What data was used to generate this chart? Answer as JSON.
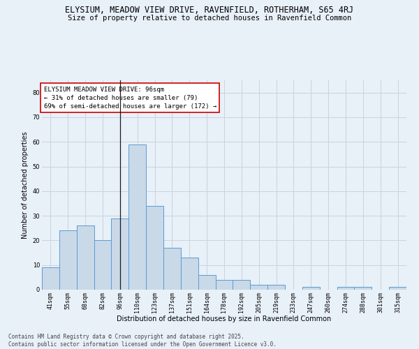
{
  "title1": "ELYSIUM, MEADOW VIEW DRIVE, RAVENFIELD, ROTHERHAM, S65 4RJ",
  "title2": "Size of property relative to detached houses in Ravenfield Common",
  "xlabel": "Distribution of detached houses by size in Ravenfield Common",
  "ylabel": "Number of detached properties",
  "categories": [
    "41sqm",
    "55sqm",
    "68sqm",
    "82sqm",
    "96sqm",
    "110sqm",
    "123sqm",
    "137sqm",
    "151sqm",
    "164sqm",
    "178sqm",
    "192sqm",
    "205sqm",
    "219sqm",
    "233sqm",
    "247sqm",
    "260sqm",
    "274sqm",
    "288sqm",
    "301sqm",
    "315sqm"
  ],
  "values": [
    9,
    24,
    26,
    20,
    29,
    59,
    34,
    17,
    13,
    6,
    4,
    4,
    2,
    2,
    0,
    1,
    0,
    1,
    1,
    0,
    1
  ],
  "bar_color": "#c9d9e8",
  "bar_edge_color": "#5b9bd5",
  "highlight_index": 4,
  "highlight_line_color": "#1a1a1a",
  "annotation_text": "ELYSIUM MEADOW VIEW DRIVE: 96sqm\n← 31% of detached houses are smaller (79)\n69% of semi-detached houses are larger (172) →",
  "annotation_box_color": "#ffffff",
  "annotation_box_edge": "#cc0000",
  "ylim": [
    0,
    85
  ],
  "yticks": [
    0,
    10,
    20,
    30,
    40,
    50,
    60,
    70,
    80
  ],
  "grid_color": "#c8d4e0",
  "background_color": "#e8f0f8",
  "footer_text": "Contains HM Land Registry data © Crown copyright and database right 2025.\nContains public sector information licensed under the Open Government Licence v3.0.",
  "title_fontsize": 8.5,
  "subtitle_fontsize": 7.5,
  "axis_label_fontsize": 7,
  "tick_fontsize": 6,
  "annotation_fontsize": 6.5,
  "footer_fontsize": 5.5
}
